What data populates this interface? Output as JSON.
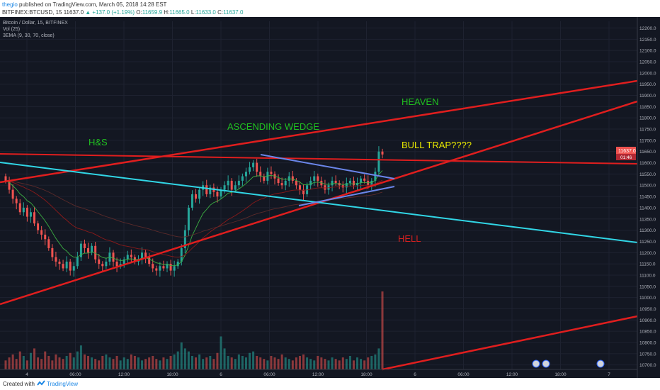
{
  "header": {
    "user": "thegio",
    "publish_text": " published on TradingView.com, March 05, 2018 14:28 EST",
    "symbol": "BITFINEX:BTCUSD, 15",
    "price": "11637.0",
    "change": "+137.0 (+1.19%)",
    "o_label": "O:",
    "o_val": "11659.9",
    "h_label": "H:",
    "h_val": "11665.0",
    "l_label": "L:",
    "l_val": "11633.0",
    "c_label": "C:",
    "c_val": "11637.0"
  },
  "legend": {
    "title": "Bitcoin / Dollar, 15, BITFINEX",
    "vol": "Vol (25)",
    "ema": "3EMA (9, 30, 70, close)"
  },
  "footer": {
    "created": "Created with",
    "brand": "TradingView"
  },
  "colors": {
    "background": "#131722",
    "candle_up": "#26a69a",
    "candle_down": "#ef5350",
    "trend_red": "#e01e1e",
    "cyan": "#31d6e6",
    "blue_wedge": "#6b86ea",
    "text_green": "#20c020",
    "text_yellow": "#e8e800",
    "text_red": "#d52020"
  },
  "chart_data": {
    "type": "candlestick",
    "symbol": "BITFINEX:BTCUSD",
    "interval": "15",
    "ylim": [
      10680,
      12230
    ],
    "y_ticks": [
      12200,
      12150,
      12100,
      12050,
      12000,
      11950,
      11900,
      11850,
      11800,
      11750,
      11700,
      11650,
      11600,
      11550,
      11500,
      11450,
      11400,
      11350,
      11300,
      11250,
      11200,
      11150,
      11100,
      11050,
      11000,
      10950,
      10900,
      10850,
      10800,
      10750,
      10700
    ],
    "x_ticks": [
      "4",
      "06:00",
      "12:00",
      "18:00",
      "6",
      "06:00",
      "12:00",
      "18:00",
      "6",
      "06:00",
      "12:00",
      "18:00",
      "7"
    ],
    "last_price_label": "11637.0",
    "countdown_label": "01:46",
    "closes": [
      11520,
      11480,
      11440,
      11420,
      11380,
      11400,
      11360,
      11380,
      11330,
      11300,
      11280,
      11260,
      11220,
      11180,
      11160,
      11150,
      11130,
      11160,
      11120,
      11140,
      11180,
      11240,
      11220,
      11200,
      11230,
      11170,
      11150,
      11140,
      11160,
      11200,
      11160,
      11140,
      11150,
      11170,
      11190,
      11180,
      11160,
      11170,
      11200,
      11180,
      11150,
      11130,
      11120,
      11140,
      11130,
      11150,
      11120,
      11140,
      11160,
      11220,
      11300,
      11400,
      11460,
      11440,
      11480,
      11500,
      11460,
      11490,
      11470,
      11450,
      11480,
      11500,
      11520,
      11480,
      11500,
      11520,
      11540,
      11560,
      11580,
      11600,
      11560,
      11540,
      11520,
      11560,
      11550,
      11530,
      11510,
      11500,
      11520,
      11540,
      11520,
      11500,
      11480,
      11460,
      11500,
      11520,
      11540,
      11520,
      11500,
      11480,
      11500,
      11520,
      11510,
      11500,
      11490,
      11510,
      11520,
      11500,
      11510,
      11530,
      11520,
      11500,
      11520,
      11560,
      11650,
      11637
    ],
    "volumes": [
      30,
      40,
      50,
      35,
      60,
      45,
      30,
      55,
      70,
      40,
      35,
      60,
      45,
      30,
      50,
      40,
      35,
      45,
      55,
      40,
      60,
      80,
      50,
      45,
      40,
      35,
      30,
      45,
      50,
      40,
      35,
      45,
      30,
      40,
      35,
      50,
      45,
      40,
      30,
      35,
      40,
      45,
      35,
      30,
      40,
      35,
      45,
      50,
      60,
      90,
      70,
      60,
      45,
      40,
      50,
      35,
      40,
      45,
      35,
      55,
      110,
      70,
      45,
      40,
      35,
      50,
      45,
      40,
      55,
      60,
      45,
      40,
      35,
      30,
      45,
      40,
      35,
      50,
      40,
      35,
      30,
      40,
      45,
      50,
      40,
      35,
      30,
      45,
      40,
      35,
      30,
      40,
      35,
      30,
      40,
      35,
      45,
      30,
      40,
      35,
      30,
      40,
      45,
      50,
      70,
      260
    ],
    "annotations": [
      {
        "text": "HEAVEN",
        "color": "#20c020"
      },
      {
        "text": "ASCENDING WEDGE",
        "color": "#20c020"
      },
      {
        "text": "H&S",
        "color": "#20c020"
      },
      {
        "text": "BULL TRAP????",
        "color": "#e8e800"
      },
      {
        "text": "HELL",
        "color": "#d52020"
      }
    ]
  }
}
